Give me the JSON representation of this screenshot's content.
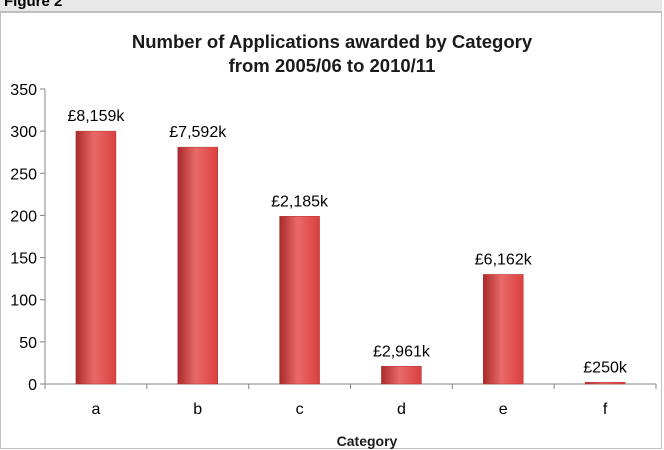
{
  "figure_label": "Figure 2",
  "chart_data": {
    "type": "bar",
    "title": "Number of Applications awarded by Category",
    "subtitle": "from 2005/06 to 2010/11",
    "xlabel": "Category",
    "ylabel": "",
    "categories": [
      "a",
      "b",
      "c",
      "d",
      "e",
      "f"
    ],
    "values": [
      300,
      281,
      199,
      21,
      130,
      2
    ],
    "data_labels": [
      "£8,159k",
      "£7,592k",
      "£2,185k",
      "£2,961k",
      "£6,162k",
      "£250k"
    ],
    "yticks": [
      "0",
      "50",
      "100",
      "150",
      "200",
      "250",
      "300",
      "350"
    ],
    "ylim": [
      0,
      350
    ],
    "grid": false,
    "legend": "none",
    "colors": {
      "bar": "#d9403f",
      "bar_light": "#e96a68",
      "bar_dark": "#a82a2a"
    }
  }
}
